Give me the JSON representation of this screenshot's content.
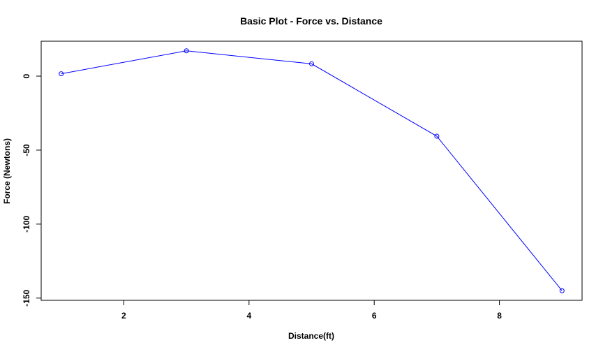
{
  "chart_data": {
    "type": "line",
    "title": "Basic Plot - Force vs. Distance",
    "xlabel": "Distance(ft)",
    "ylabel": "Force (Newtons)",
    "series": [
      {
        "x": [
          1,
          3,
          5,
          7,
          9
        ],
        "values": [
          1.6,
          17.1,
          8.3,
          -40.6,
          -145.0
        ],
        "color": "#0000ff",
        "marker": "open-circle"
      }
    ],
    "x_ticks": [
      2,
      4,
      6,
      8
    ],
    "y_ticks": [
      0,
      -50,
      -100,
      -150
    ],
    "xlim": [
      0.68,
      9.32
    ],
    "ylim": [
      -151.5,
      23.6
    ],
    "grid": false,
    "legend": "none"
  }
}
